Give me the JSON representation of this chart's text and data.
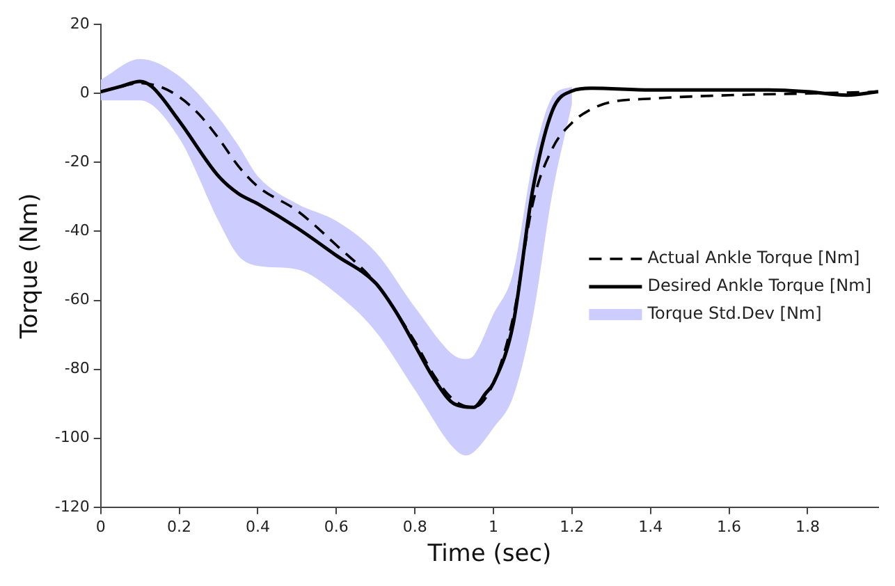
{
  "chart_data": {
    "type": "line",
    "xlabel": "Time (sec)",
    "ylabel": "Torque (Nm)",
    "xlim": [
      0,
      1.98
    ],
    "xticks": [
      0,
      0.2,
      0.4,
      0.6,
      0.8,
      1,
      1.2,
      1.4,
      1.6,
      1.8
    ],
    "ylim": [
      -120,
      20
    ],
    "yticks": [
      -120,
      -100,
      -80,
      -60,
      -40,
      -20,
      0,
      20
    ],
    "grid": false,
    "legend": "right",
    "marker": "none",
    "series": [
      {
        "name": "Actual Ankle Torque [Nm]",
        "color": "#000000",
        "line_style": "dashed",
        "x": [
          0,
          0.05,
          0.1,
          0.15,
          0.2,
          0.25,
          0.3,
          0.35,
          0.4,
          0.5,
          0.6,
          0.7,
          0.8,
          0.85,
          0.9,
          0.95,
          1,
          1.05,
          1.1,
          1.15,
          1.2,
          1.25,
          1.3,
          1.4,
          1.6,
          1.8,
          1.98
        ],
        "values": [
          0.5,
          2,
          3,
          2,
          -1,
          -6,
          -13,
          -21,
          -27,
          -34,
          -44,
          -55,
          -72,
          -82,
          -89,
          -91,
          -84,
          -65,
          -32,
          -16,
          -8.5,
          -4.5,
          -2.5,
          -1.5,
          -0.5,
          0,
          0.5
        ]
      },
      {
        "name": "Desired Ankle Torque [Nm]",
        "color": "#000000",
        "line_style": "solid",
        "x": [
          0,
          0.05,
          0.1,
          0.13,
          0.2,
          0.3,
          0.35,
          0.4,
          0.5,
          0.6,
          0.7,
          0.75,
          0.8,
          0.85,
          0.9,
          0.95,
          0.98,
          1,
          1.05,
          1.1,
          1.15,
          1.2,
          1.25,
          1.4,
          1.6,
          1.7,
          1.8,
          1.9,
          1.98
        ],
        "values": [
          0.5,
          2,
          3.5,
          2,
          -8,
          -24,
          -29,
          -32,
          -39,
          -47,
          -55,
          -63,
          -73,
          -83,
          -90,
          -91,
          -87,
          -84,
          -67,
          -28,
          -5,
          0.7,
          1.5,
          1,
          1,
          1,
          0.5,
          -0.5,
          0.5
        ]
      },
      {
        "name": "Torque Std.Dev [Nm]",
        "type": "area",
        "color": "#ccccff",
        "x": [
          0,
          0.1,
          0.2,
          0.3,
          0.35,
          0.4,
          0.5,
          0.6,
          0.7,
          0.8,
          0.9,
          0.93,
          0.95,
          1,
          1.05,
          1.1,
          1.15,
          1.2
        ],
        "values": [
          null,
          null,
          null,
          null,
          null,
          null,
          null,
          null,
          null,
          null,
          null,
          null,
          null,
          null,
          null,
          null,
          null,
          null
        ],
        "lower": [
          -2,
          -2,
          -13,
          -37,
          -47,
          -50,
          -51,
          -58,
          -69,
          -86,
          -103,
          -105,
          -104,
          -97,
          -88,
          -65,
          -29,
          -3
        ],
        "upper": [
          4,
          10,
          5,
          -7,
          -15,
          -24,
          -32,
          -37,
          -46,
          -62,
          -76,
          -77,
          -76,
          -64,
          -52,
          -20,
          -1,
          2
        ]
      }
    ]
  }
}
